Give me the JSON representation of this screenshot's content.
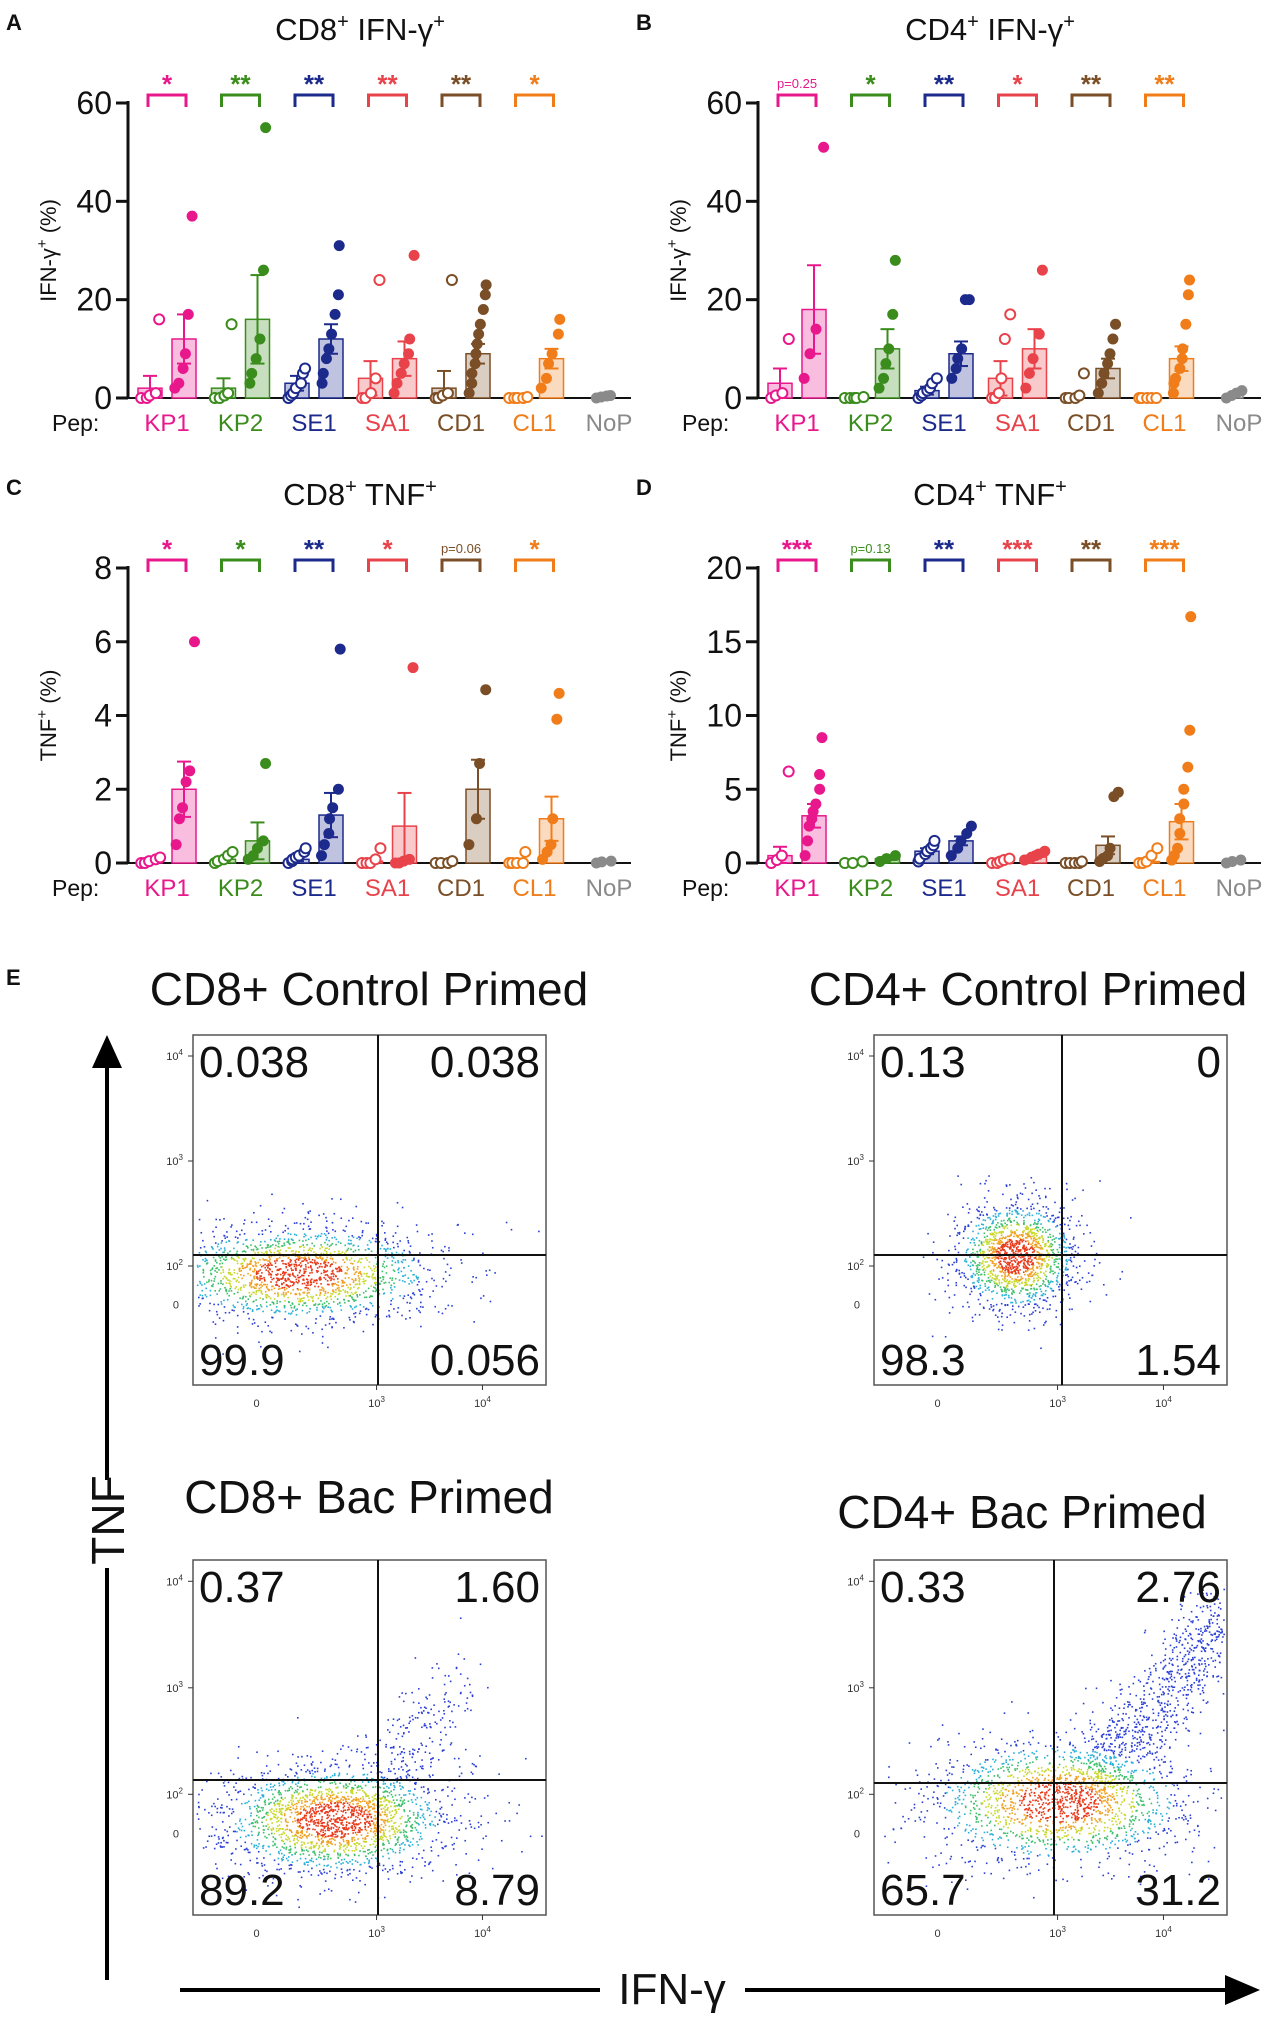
{
  "colors": {
    "KP1": "#e8188c",
    "KP2": "#3a8c1c",
    "SE1": "#1c2a8c",
    "SA1": "#e8424a",
    "CD1": "#7a4e26",
    "CL1": "#f07d1a",
    "NoP": "#8a8a8a",
    "axis": "#111111"
  },
  "chart_data": [
    {
      "type": "bar",
      "id": "A",
      "panel_label": "A",
      "title_main": "CD8",
      "title_sup1": "+",
      "title_mid": " IFN-γ",
      "title_sup2": "+",
      "ylabel_main": "IFN-γ",
      "ylabel_sup": "+",
      "ylabel_unit": " (%)",
      "pep_label": "Pep:",
      "ylim": [
        0,
        60
      ],
      "yticks": [
        0,
        20,
        40,
        60
      ],
      "ytick_labels": [
        "0",
        "20",
        "40",
        "60"
      ],
      "groups": [
        {
          "name": "KP1",
          "sig": "*",
          "ctrl": {
            "mean": 2,
            "sem": 2.5,
            "points": [
              0,
              0,
              0.5,
              1,
              16
            ]
          },
          "stim": {
            "mean": 12,
            "sem": 5,
            "points": [
              2,
              3,
              6,
              9,
              17,
              37
            ]
          }
        },
        {
          "name": "KP2",
          "sig": "**",
          "ctrl": {
            "mean": 2,
            "sem": 2,
            "points": [
              0,
              0,
              0.5,
              1,
              15
            ]
          },
          "stim": {
            "mean": 16,
            "sem": 9,
            "points": [
              3,
              5,
              8,
              12,
              26,
              55
            ]
          }
        },
        {
          "name": "SE1",
          "sig": "**",
          "ctrl": {
            "mean": 3,
            "sem": 1.5,
            "points": [
              0,
              0.5,
              1,
              2,
              3,
              5,
              6
            ]
          },
          "stim": {
            "mean": 12,
            "sem": 3,
            "points": [
              3,
              5,
              8,
              10,
              13,
              17,
              21,
              31
            ]
          }
        },
        {
          "name": "SA1",
          "sig": "**",
          "ctrl": {
            "mean": 4,
            "sem": 3.5,
            "points": [
              0,
              0,
              1,
              4,
              24
            ]
          },
          "stim": {
            "mean": 8,
            "sem": 3.5,
            "points": [
              1,
              3,
              5,
              7,
              9,
              12,
              29
            ]
          }
        },
        {
          "name": "CD1",
          "sig": "**",
          "ctrl": {
            "mean": 2,
            "sem": 3.5,
            "points": [
              0,
              0,
              0.5,
              1,
              24
            ]
          },
          "stim": {
            "mean": 9,
            "sem": 2,
            "points": [
              1,
              3,
              5,
              7,
              9,
              11,
              13,
              15,
              18,
              21,
              23
            ]
          }
        },
        {
          "name": "CL1",
          "sig": "*",
          "ctrl": {
            "mean": 0,
            "sem": 0.2,
            "points": [
              0,
              0,
              0,
              0,
              0.2
            ]
          },
          "stim": {
            "mean": 8,
            "sem": 2,
            "points": [
              2,
              4,
              7,
              9,
              13,
              16
            ]
          }
        },
        {
          "name": "NoP",
          "sig": "",
          "stim": {
            "mean": 0.3,
            "sem": 0.1,
            "points": [
              0,
              0.2,
              0.4,
              0.5
            ]
          }
        }
      ]
    },
    {
      "type": "bar",
      "id": "B",
      "panel_label": "B",
      "title_main": "CD4",
      "title_sup1": "+",
      "title_mid": " IFN-γ",
      "title_sup2": "+",
      "ylabel_main": "IFN-γ",
      "ylabel_sup": "+",
      "ylabel_unit": " (%)",
      "pep_label": "Pep:",
      "ylim": [
        0,
        60
      ],
      "yticks": [
        0,
        20,
        40,
        60
      ],
      "ytick_labels": [
        "0",
        "20",
        "40",
        "60"
      ],
      "groups": [
        {
          "name": "KP1",
          "sig": "p=0.25",
          "ctrl": {
            "mean": 3,
            "sem": 3,
            "points": [
              0,
              0.5,
              1,
              12
            ]
          },
          "stim": {
            "mean": 18,
            "sem": 9,
            "points": [
              4,
              9,
              14,
              51
            ]
          }
        },
        {
          "name": "KP2",
          "sig": "*",
          "ctrl": {
            "mean": 0,
            "sem": 0.2,
            "points": [
              0,
              0,
              0,
              0,
              0.2
            ]
          },
          "stim": {
            "mean": 10,
            "sem": 4,
            "points": [
              2,
              4,
              7,
              10,
              17,
              28
            ]
          }
        },
        {
          "name": "SE1",
          "sig": "**",
          "ctrl": {
            "mean": 1.5,
            "sem": 0.8,
            "points": [
              0,
              0.5,
              1,
              1.5,
              2,
              3,
              4
            ]
          },
          "stim": {
            "mean": 9,
            "sem": 2.5,
            "points": [
              4,
              6,
              8,
              10,
              20,
              20
            ]
          }
        },
        {
          "name": "SA1",
          "sig": "*",
          "ctrl": {
            "mean": 4,
            "sem": 3.5,
            "points": [
              0,
              0,
              1,
              4,
              12,
              17
            ]
          },
          "stim": {
            "mean": 10,
            "sem": 4,
            "points": [
              2,
              5,
              8,
              13,
              26
            ]
          }
        },
        {
          "name": "CD1",
          "sig": "**",
          "ctrl": {
            "mean": 0,
            "sem": 0.2,
            "points": [
              0,
              0,
              0,
              0.5,
              5
            ]
          },
          "stim": {
            "mean": 6,
            "sem": 2,
            "points": [
              1,
              3,
              5,
              7,
              9,
              12,
              15
            ]
          }
        },
        {
          "name": "CL1",
          "sig": "**",
          "ctrl": {
            "mean": 0,
            "sem": 0.2,
            "points": [
              0,
              0,
              0,
              0,
              0
            ]
          },
          "stim": {
            "mean": 8,
            "sem": 2.5,
            "points": [
              1,
              3,
              4,
              6,
              8,
              10,
              15,
              21,
              24
            ]
          }
        },
        {
          "name": "NoP",
          "sig": "",
          "stim": {
            "mean": 0.5,
            "sem": 0.2,
            "points": [
              0,
              0.5,
              1,
              1.5
            ]
          }
        }
      ]
    },
    {
      "type": "bar",
      "id": "C",
      "panel_label": "C",
      "title_main": "CD8",
      "title_sup1": "+",
      "title_mid": " TNF",
      "title_sup2": "+",
      "ylabel_main": "TNF",
      "ylabel_sup": "+",
      "ylabel_unit": " (%)",
      "pep_label": "Pep:",
      "ylim": [
        0,
        8
      ],
      "yticks": [
        0,
        2,
        4,
        6,
        8
      ],
      "ytick_labels": [
        "0",
        "2",
        "4",
        "6",
        "8"
      ],
      "groups": [
        {
          "name": "KP1",
          "sig": "*",
          "ctrl": {
            "mean": 0.05,
            "sem": 0.03,
            "points": [
              0,
              0,
              0.05,
              0.1,
              0.15
            ]
          },
          "stim": {
            "mean": 2,
            "sem": 0.75,
            "points": [
              0.5,
              1.2,
              1.5,
              2.2,
              2.5,
              6
            ]
          }
        },
        {
          "name": "KP2",
          "sig": "*",
          "ctrl": {
            "mean": 0.1,
            "sem": 0.05,
            "points": [
              0,
              0.05,
              0.1,
              0.2,
              0.3
            ]
          },
          "stim": {
            "mean": 0.6,
            "sem": 0.5,
            "points": [
              0.1,
              0.2,
              0.4,
              0.6,
              2.7
            ]
          }
        },
        {
          "name": "SE1",
          "sig": "**",
          "ctrl": {
            "mean": 0.1,
            "sem": 0.05,
            "points": [
              0,
              0.05,
              0.1,
              0.15,
              0.2,
              0.3,
              0.4
            ]
          },
          "stim": {
            "mean": 1.3,
            "sem": 0.6,
            "points": [
              0.2,
              0.5,
              0.8,
              1.2,
              1.5,
              2,
              5.8
            ]
          }
        },
        {
          "name": "SA1",
          "sig": "*",
          "ctrl": {
            "mean": 0.05,
            "sem": 0.05,
            "points": [
              0,
              0,
              0,
              0.1,
              0.4
            ]
          },
          "stim": {
            "mean": 1,
            "sem": 0.9,
            "points": [
              0,
              0,
              0.05,
              0.1,
              5.3
            ]
          }
        },
        {
          "name": "CD1",
          "sig": "p=0.06",
          "ctrl": {
            "mean": 0,
            "sem": 0.03,
            "points": [
              0,
              0,
              0,
              0.05
            ]
          },
          "stim": {
            "mean": 2,
            "sem": 0.8,
            "points": [
              0.5,
              1.2,
              2.7,
              4.7
            ]
          }
        },
        {
          "name": "CL1",
          "sig": "*",
          "ctrl": {
            "mean": 0,
            "sem": 0.05,
            "points": [
              0,
              0,
              0,
              0,
              0.3
            ]
          },
          "stim": {
            "mean": 1.2,
            "sem": 0.6,
            "points": [
              0.1,
              0.3,
              0.5,
              1.2,
              3.9,
              4.6
            ]
          }
        },
        {
          "name": "NoP",
          "sig": "",
          "stim": {
            "mean": 0.02,
            "sem": 0.02,
            "points": [
              0,
              0.03,
              0.05
            ]
          }
        }
      ]
    },
    {
      "type": "bar",
      "id": "D",
      "panel_label": "D",
      "title_main": "CD4",
      "title_sup1": "+",
      "title_mid": " TNF",
      "title_sup2": "+",
      "ylabel_main": "TNF",
      "ylabel_sup": "+",
      "ylabel_unit": " (%)",
      "pep_label": "Pep:",
      "ylim": [
        0,
        20
      ],
      "yticks": [
        0,
        5,
        10,
        15,
        20
      ],
      "ytick_labels": [
        "0",
        "5",
        "10",
        "15",
        "20"
      ],
      "groups": [
        {
          "name": "KP1",
          "sig": "***",
          "ctrl": {
            "mean": 0.5,
            "sem": 0.6,
            "points": [
              0,
              0.2,
              0.5,
              6.2
            ]
          },
          "stim": {
            "mean": 3.2,
            "sem": 0.8,
            "points": [
              0.5,
              1.5,
              2.5,
              3,
              3.5,
              4,
              5,
              6,
              8.5
            ]
          }
        },
        {
          "name": "KP2",
          "sig": "p=0.13",
          "ctrl": {
            "mean": 0,
            "sem": 0.05,
            "points": [
              0,
              0,
              0.1
            ]
          },
          "stim": {
            "mean": 0.3,
            "sem": 0.1,
            "points": [
              0.1,
              0.3,
              0.5
            ]
          }
        },
        {
          "name": "SE1",
          "sig": "**",
          "ctrl": {
            "mean": 0.8,
            "sem": 0.2,
            "points": [
              0.1,
              0.3,
              0.6,
              0.8,
              1,
              1.2,
              1.5
            ]
          },
          "stim": {
            "mean": 1.5,
            "sem": 0.3,
            "points": [
              0.5,
              1,
              1.5,
              2,
              2.5
            ]
          }
        },
        {
          "name": "SA1",
          "sig": "***",
          "ctrl": {
            "mean": 0.1,
            "sem": 0.05,
            "points": [
              0,
              0,
              0.1,
              0.2,
              0.3
            ]
          },
          "stim": {
            "mean": 0.4,
            "sem": 0.1,
            "points": [
              0.2,
              0.3,
              0.4,
              0.5,
              0.6,
              0.8
            ]
          }
        },
        {
          "name": "CD1",
          "sig": "**",
          "ctrl": {
            "mean": 0,
            "sem": 0.05,
            "points": [
              0,
              0,
              0,
              0,
              0.1
            ]
          },
          "stim": {
            "mean": 1.2,
            "sem": 0.6,
            "points": [
              0.1,
              0.3,
              0.5,
              1,
              4.5,
              4.8
            ]
          }
        },
        {
          "name": "CL1",
          "sig": "***",
          "ctrl": {
            "mean": 0.1,
            "sem": 0.1,
            "points": [
              0,
              0,
              0.1,
              0.5,
              1
            ]
          },
          "stim": {
            "mean": 2.8,
            "sem": 1.2,
            "points": [
              0.2,
              0.5,
              1,
              2,
              3,
              4,
              5,
              6.5,
              9,
              16.7
            ]
          }
        },
        {
          "name": "NoP",
          "sig": "",
          "stim": {
            "mean": 0.1,
            "sem": 0.05,
            "points": [
              0,
              0.1,
              0.2
            ]
          }
        }
      ]
    },
    {
      "type": "scatter",
      "id": "E",
      "panel_label": "E",
      "y_axis_label": "TNF",
      "x_axis_label": "IFN-γ",
      "tick_labels": {
        "zero": "0",
        "t2": "10",
        "e2": "2",
        "t3": "10",
        "e3": "3",
        "t4": "10",
        "e4": "4"
      },
      "plots": [
        {
          "title": "CD8+ Control Primed",
          "q_ul": "0.038",
          "q_ur": "0.038",
          "q_ll": "99.9",
          "q_lr": "0.056"
        },
        {
          "title": "CD4+ Control Primed",
          "q_ul": "0.13",
          "q_ur": "0",
          "q_ll": "98.3",
          "q_lr": "1.54"
        },
        {
          "title": "CD8+ Bac Primed",
          "q_ul": "0.37",
          "q_ur": "1.60",
          "q_ll": "89.2",
          "q_lr": "8.79"
        },
        {
          "title": "CD4+ Bac Primed",
          "q_ul": "0.33",
          "q_ur": "2.76",
          "q_ll": "65.7",
          "q_lr": "31.2"
        }
      ]
    }
  ]
}
